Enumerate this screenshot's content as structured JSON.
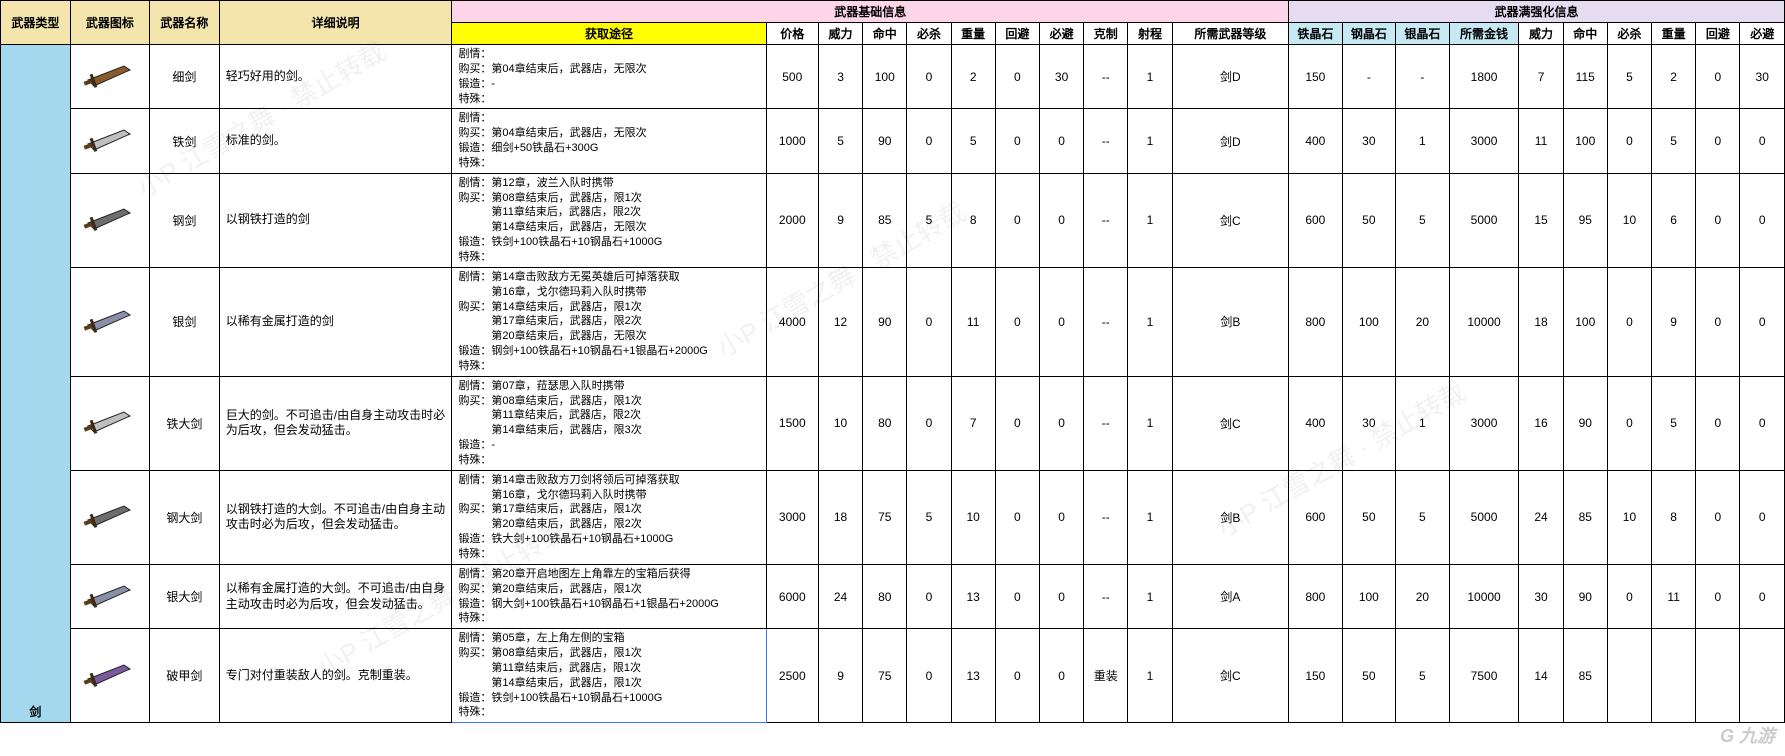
{
  "headers": {
    "type": "武器类型",
    "image": "武器图标",
    "name": "武器名称",
    "detail": "详细说明",
    "baseGroup": "武器基础信息",
    "maxGroup": "武器满强化信息",
    "acquire": "获取途径",
    "base": [
      "价格",
      "威力",
      "命中",
      "必杀",
      "重量",
      "回避",
      "必避",
      "克制",
      "射程",
      "所需武器等级"
    ],
    "mats": [
      "铁晶石",
      "钢晶石",
      "银晶石",
      "所需金钱"
    ],
    "max": [
      "威力",
      "命中",
      "必杀",
      "重量",
      "回避",
      "必避"
    ]
  },
  "typeLabel": "剑",
  "colors": {
    "gold": "#f3e5ab",
    "pink": "#fcd5e8",
    "cyan": "#c6e9f3",
    "lilac": "#e6dcf2",
    "yellow": "#ffff00",
    "type": "#a4d8ef",
    "border": "#000000"
  },
  "iconPalette": [
    "#8b5a2b",
    "#bfbfbf",
    "#6e6e6e",
    "#8a8fa8",
    "#7a5c9d"
  ],
  "rows": [
    {
      "name": "细剑",
      "desc": "轻巧好用的剑。",
      "icon": 0,
      "detail": "剧情：\n购买：第04章结束后，武器店，无限次\n锻造：-\n特殊：",
      "base": [
        "500",
        "3",
        "100",
        "0",
        "2",
        "0",
        "30",
        "--",
        "1",
        "剑D"
      ],
      "mats": [
        "150",
        "-",
        "-",
        "1800"
      ],
      "max": [
        "7",
        "115",
        "5",
        "2",
        "0",
        "30"
      ]
    },
    {
      "name": "铁剑",
      "desc": "标准的剑。",
      "icon": 1,
      "detail": "剧情：\n购买：第04章结束后，武器店，无限次\n锻造：细剑+50铁晶石+300G\n特殊：",
      "base": [
        "1000",
        "5",
        "90",
        "0",
        "5",
        "0",
        "0",
        "--",
        "1",
        "剑D"
      ],
      "mats": [
        "400",
        "30",
        "1",
        "3000"
      ],
      "max": [
        "11",
        "100",
        "0",
        "5",
        "0",
        "0"
      ]
    },
    {
      "name": "钢剑",
      "desc": "以钢铁打造的剑",
      "icon": 2,
      "detail": "剧情：第12章，波兰入队时携带\n购买：第08章结束后，武器店，限1次\n　　　第11章结束后，武器店，限2次\n　　　第14章结束后，武器店，无限次\n锻造：铁剑+100铁晶石+10钢晶石+1000G\n特殊：",
      "base": [
        "2000",
        "9",
        "85",
        "5",
        "8",
        "0",
        "0",
        "--",
        "1",
        "剑C"
      ],
      "mats": [
        "600",
        "50",
        "5",
        "5000"
      ],
      "max": [
        "15",
        "95",
        "10",
        "6",
        "0",
        "0"
      ]
    },
    {
      "name": "银剑",
      "desc": "以稀有金属打造的剑",
      "icon": 3,
      "detail": "剧情：第14章击败敌方无冕英雄后可掉落获取\n　　　第16章，戈尔德玛莉入队时携带\n购买：第14章结束后，武器店，限1次\n　　　第17章结束后，武器店，限2次\n　　　第20章结束后，武器店，无限次\n锻造：钢剑+100铁晶石+10钢晶石+1银晶石+2000G\n特殊：",
      "base": [
        "4000",
        "12",
        "90",
        "0",
        "11",
        "0",
        "0",
        "--",
        "1",
        "剑B"
      ],
      "mats": [
        "800",
        "100",
        "20",
        "10000"
      ],
      "max": [
        "18",
        "100",
        "0",
        "9",
        "0",
        "0"
      ]
    },
    {
      "name": "铁大剑",
      "desc": "巨大的剑。不可追击/由自身主动攻击时必为后攻，但会发动猛击。",
      "icon": 1,
      "detail": "剧情：第07章，菈瑟思入队时携带\n购买：第08章结束后，武器店，限1次\n　　　第11章结束后，武器店，限2次\n　　　第14章结束后，武器店，限3次\n锻造：-\n特殊：",
      "base": [
        "1500",
        "10",
        "80",
        "0",
        "7",
        "0",
        "0",
        "--",
        "1",
        "剑C"
      ],
      "mats": [
        "400",
        "30",
        "1",
        "3000"
      ],
      "max": [
        "16",
        "90",
        "0",
        "5",
        "0",
        "0"
      ]
    },
    {
      "name": "钢大剑",
      "desc": "以钢铁打造的大剑。不可追击/由自身主动攻击时必为后攻，但会发动猛击。",
      "icon": 2,
      "detail": "剧情：第14章击败敌方刀剑将领后可掉落获取\n　　　第16章，戈尔德玛莉入队时携带\n购买：第17章结束后，武器店，限1次\n　　　第20章结束后，武器店，限2次\n锻造：铁大剑+100铁晶石+10钢晶石+1000G\n特殊：",
      "base": [
        "3000",
        "18",
        "75",
        "5",
        "10",
        "0",
        "0",
        "--",
        "1",
        "剑B"
      ],
      "mats": [
        "600",
        "50",
        "5",
        "5000"
      ],
      "max": [
        "24",
        "85",
        "10",
        "8",
        "0",
        "0"
      ]
    },
    {
      "name": "银大剑",
      "desc": "以稀有金属打造的大剑。不可追击/由自身主动攻击时必为后攻，但会发动猛击。",
      "icon": 3,
      "detail": "剧情：第20章开启地图左上角靠左的宝箱后获得\n购买：第20章结束后，武器店，限1次\n锻造：钢大剑+100铁晶石+10钢晶石+1银晶石+2000G\n特殊：",
      "base": [
        "6000",
        "24",
        "80",
        "0",
        "13",
        "0",
        "0",
        "--",
        "1",
        "剑A"
      ],
      "mats": [
        "800",
        "100",
        "20",
        "10000"
      ],
      "max": [
        "30",
        "90",
        "0",
        "11",
        "0",
        "0"
      ]
    },
    {
      "name": "破甲剑",
      "desc": "专门对付重装敌人的剑。克制重装。",
      "icon": 4,
      "selected": true,
      "detail": "剧情：第05章，左上角左侧的宝箱\n购买：第08章结束后，武器店，限1次\n　　　第11章结束后，武器店，限1次\n　　　第14章结束后，武器店，限1次\n锻造：铁剑+100铁晶石+10钢晶石+1000G\n特殊：",
      "base": [
        "2500",
        "9",
        "75",
        "0",
        "13",
        "0",
        "0",
        "重装",
        "1",
        "剑C"
      ],
      "mats": [
        "150",
        "50",
        "5",
        "7500"
      ],
      "max": [
        "14",
        "85",
        "",
        "",
        "",
        ""
      ]
    }
  ],
  "logo": "G 九游"
}
